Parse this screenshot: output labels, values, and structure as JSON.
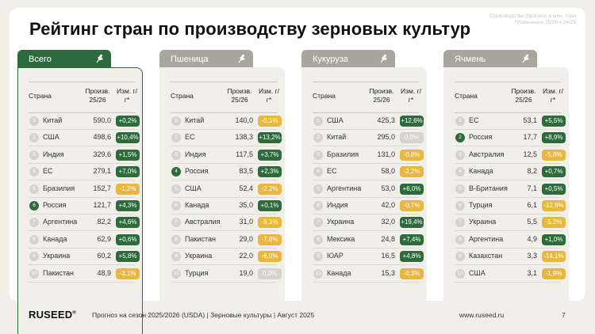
{
  "title": "Рейтинг стран по производству зерновых культур",
  "note": "Производство (прогноз) в млн. тонн *Изменение 25/26 к 24/25",
  "headers": {
    "country": "Страна",
    "production": "Произв. 25/26",
    "change": "Изм. г/г*"
  },
  "colors": {
    "green": "#2e6b3c",
    "gray_tab": "#a9a79d",
    "positive": "#2e6b3c",
    "negative": "#e8b73f",
    "neutral": "#d6d3cc"
  },
  "leaf_icon": "wheat-icon",
  "panels": [
    {
      "tab": "Всего",
      "rows": [
        {
          "rank": "1",
          "country": "Китай",
          "value": "590,0",
          "change": "+0,2%",
          "sign": "pos"
        },
        {
          "rank": "2",
          "country": "США",
          "value": "498,6",
          "change": "+10,4%",
          "sign": "pos"
        },
        {
          "rank": "3",
          "country": "Индия",
          "value": "329,6",
          "change": "+1,5%",
          "sign": "pos"
        },
        {
          "rank": "4",
          "country": "ЕС",
          "value": "279,1",
          "change": "+7,0%",
          "sign": "pos"
        },
        {
          "rank": "5",
          "country": "Бразилия",
          "value": "152,7",
          "change": "-1,2%",
          "sign": "neg"
        },
        {
          "rank": "6",
          "country": "Россия",
          "value": "121,7",
          "change": "+4,3%",
          "sign": "pos"
        },
        {
          "rank": "7",
          "country": "Аргентина",
          "value": "82,2",
          "change": "+4,6%",
          "sign": "pos"
        },
        {
          "rank": "8",
          "country": "Канада",
          "value": "62,9",
          "change": "+0,6%",
          "sign": "pos"
        },
        {
          "rank": "9",
          "country": "Украина",
          "value": "60,2",
          "change": "+5,8%",
          "sign": "pos"
        },
        {
          "rank": "10",
          "country": "Пакистан",
          "value": "48,9",
          "change": "-3,1%",
          "sign": "neg"
        }
      ]
    },
    {
      "tab": "Пшеница",
      "rows": [
        {
          "rank": "1",
          "country": "Китай",
          "value": "140,0",
          "change": "-0,1%",
          "sign": "neg"
        },
        {
          "rank": "2",
          "country": "ЕС",
          "value": "138,3",
          "change": "+13,2%",
          "sign": "pos"
        },
        {
          "rank": "3",
          "country": "Индия",
          "value": "117,5",
          "change": "+3,7%",
          "sign": "pos"
        },
        {
          "rank": "4",
          "country": "Россия",
          "value": "83,5",
          "change": "+2,3%",
          "sign": "pos"
        },
        {
          "rank": "5",
          "country": "США",
          "value": "52,4",
          "change": "-2,2%",
          "sign": "neg"
        },
        {
          "rank": "6",
          "country": "Канада",
          "value": "35,0",
          "change": "+0,1%",
          "sign": "pos"
        },
        {
          "rank": "7",
          "country": "Австралия",
          "value": "31,0",
          "change": "-9,1%",
          "sign": "neg"
        },
        {
          "rank": "8",
          "country": "Пакистан",
          "value": "29,0",
          "change": "-7,8%",
          "sign": "neg"
        },
        {
          "rank": "9",
          "country": "Украина",
          "value": "22,0",
          "change": "-6,0%",
          "sign": "neg"
        },
        {
          "rank": "10",
          "country": "Турция",
          "value": "19,0",
          "change": "0,0%",
          "sign": "zero"
        }
      ]
    },
    {
      "tab": "Кукуруза",
      "rows": [
        {
          "rank": "1",
          "country": "США",
          "value": "425,3",
          "change": "+12,6%",
          "sign": "pos"
        },
        {
          "rank": "2",
          "country": "Китай",
          "value": "295,0",
          "change": "0,0%",
          "sign": "zero"
        },
        {
          "rank": "3",
          "country": "Бразилия",
          "value": "131,0",
          "change": "-0,8%",
          "sign": "neg"
        },
        {
          "rank": "4",
          "country": "ЕС",
          "value": "58,0",
          "change": "-2,2%",
          "sign": "neg"
        },
        {
          "rank": "5",
          "country": "Аргентина",
          "value": "53,0",
          "change": "+6,0%",
          "sign": "pos"
        },
        {
          "rank": "6",
          "country": "Индия",
          "value": "42,0",
          "change": "-0,7%",
          "sign": "neg"
        },
        {
          "rank": "7",
          "country": "Украина",
          "value": "32,0",
          "change": "+19,4%",
          "sign": "pos"
        },
        {
          "rank": "8",
          "country": "Мексика",
          "value": "24,8",
          "change": "+7,4%",
          "sign": "pos"
        },
        {
          "rank": "9",
          "country": "ЮАР",
          "value": "16,5",
          "change": "+4,8%",
          "sign": "pos"
        },
        {
          "rank": "10",
          "country": "Канада",
          "value": "15,3",
          "change": "-0,3%",
          "sign": "neg"
        }
      ]
    },
    {
      "tab": "Ячмень",
      "rows": [
        {
          "rank": "1",
          "country": "ЕС",
          "value": "53,1",
          "change": "+5,5%",
          "sign": "pos"
        },
        {
          "rank": "2",
          "country": "Россия",
          "value": "17,7",
          "change": "+8,9%",
          "sign": "pos"
        },
        {
          "rank": "3",
          "country": "Австралия",
          "value": "12,5",
          "change": "-5,8%",
          "sign": "neg"
        },
        {
          "rank": "4",
          "country": "Канада",
          "value": "8,2",
          "change": "+0,7%",
          "sign": "pos"
        },
        {
          "rank": "5",
          "country": "В-Британия",
          "value": "7,1",
          "change": "+0,5%",
          "sign": "pos"
        },
        {
          "rank": "6",
          "country": "Турция",
          "value": "6,1",
          "change": "-12,9%",
          "sign": "neg"
        },
        {
          "rank": "7",
          "country": "Украина",
          "value": "5,5",
          "change": "-5,2%",
          "sign": "neg"
        },
        {
          "rank": "8",
          "country": "Аргентина",
          "value": "4,9",
          "change": "+1,0%",
          "sign": "pos"
        },
        {
          "rank": "9",
          "country": "Казахстан",
          "value": "3,3",
          "change": "-14,1%",
          "sign": "neg"
        },
        {
          "rank": "10",
          "country": "США",
          "value": "3,1",
          "change": "-1,9%",
          "sign": "neg"
        }
      ]
    }
  ],
  "footer": {
    "logo": "RUSEED",
    "logo_mark": "®",
    "text": "Прогноз на сезон 2025/2026 (USDA)  |  Зерновые культуры  |  Август 2025",
    "site": "www.ruseed.ru",
    "page": "7"
  }
}
